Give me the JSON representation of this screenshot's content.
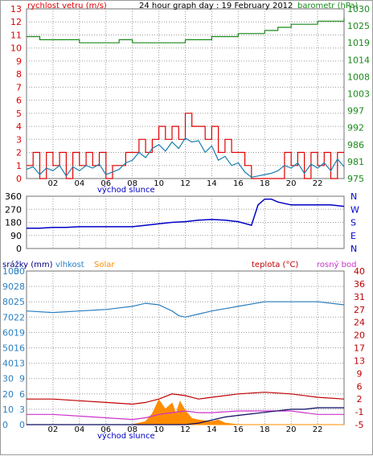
{
  "colors": {
    "wind": "#e00000",
    "gust_avg": "#1a7fb0",
    "pressure": "#1a8a1a",
    "direction": "#0000c8",
    "humidity": "#2a7fc0",
    "solar": "#ff8c00",
    "temperature": "#c00000",
    "dewpoint": "#cc33cc",
    "rain": "#0a0a60",
    "grid": "#9a9a9a"
  },
  "header": {
    "wind_label": "rychlost vetru (m/s)",
    "title": "24 hour graph day : 19 February 2012",
    "pressure_label": "barometr (hPa)"
  },
  "panel3": {
    "rain_label": "srážky (mm)",
    "humidity_label": "vlhkost",
    "solar_label": "Solar",
    "temp_label": "teplota (°C)",
    "dew_label": "rosný bod"
  },
  "x_ticks": [
    "02",
    "04",
    "06",
    "08",
    "10",
    "12",
    "14",
    "16",
    "18",
    "20",
    "22"
  ],
  "sunrise_label": "východ slunce",
  "chart_data": [
    {
      "type": "line",
      "name": "wind-pressure",
      "x_unit": "hour",
      "xlim": [
        0,
        24
      ],
      "ylim_left": [
        0,
        13
      ],
      "ylim_right": [
        975,
        1030
      ],
      "y_ticks_left": [
        "0",
        "1",
        "2",
        "3",
        "4",
        "5",
        "6",
        "7",
        "8",
        "9",
        "10",
        "11",
        "12",
        "13"
      ],
      "y_ticks_right": [
        "975",
        "981",
        "986",
        "992",
        "997",
        "1003",
        "1008",
        "1014",
        "1019",
        "1025",
        "1030"
      ],
      "series": [
        {
          "name": "rychlost vetru",
          "axis": "left",
          "x": [
            0,
            0.5,
            1,
            1.5,
            2,
            2.5,
            3,
            3.5,
            4,
            4.5,
            5,
            5.5,
            6,
            6.5,
            7,
            7.5,
            8,
            8.5,
            9,
            9.5,
            10,
            10.5,
            11,
            11.5,
            12,
            12.5,
            13,
            13.5,
            14,
            14.5,
            15,
            15.5,
            16,
            16.5,
            17,
            17.5,
            18,
            18.5,
            19,
            19.5,
            20,
            20.5,
            21,
            21.5,
            22,
            22.5,
            23,
            23.5,
            24
          ],
          "values": [
            1,
            2,
            0,
            2,
            1,
            2,
            0,
            2,
            1,
            2,
            1,
            2,
            0,
            1,
            1,
            2,
            2,
            3,
            2,
            3,
            4,
            3,
            4,
            3,
            5,
            4,
            4,
            3,
            4,
            2,
            3,
            2,
            2,
            1,
            0,
            0,
            0,
            0,
            0,
            2,
            1,
            2,
            0,
            2,
            1,
            2,
            0,
            2,
            2
          ]
        },
        {
          "name": "prumer",
          "axis": "left",
          "x": [
            0,
            0.5,
            1,
            1.5,
            2,
            2.5,
            3,
            3.5,
            4,
            4.5,
            5,
            5.5,
            6,
            6.5,
            7,
            7.5,
            8,
            8.5,
            9,
            9.5,
            10,
            10.5,
            11,
            11.5,
            12,
            12.5,
            13,
            13.5,
            14,
            14.5,
            15,
            15.5,
            16,
            16.5,
            17,
            17.5,
            18,
            18.5,
            19,
            19.5,
            20,
            20.5,
            21,
            21.5,
            22,
            22.5,
            23,
            23.5,
            24
          ],
          "values": [
            0.7,
            0.9,
            0.3,
            0.8,
            0.6,
            1.0,
            0.2,
            0.9,
            0.6,
            1.0,
            0.8,
            1.1,
            0.3,
            0.5,
            0.7,
            1.2,
            1.4,
            2.0,
            1.6,
            2.3,
            2.6,
            2.1,
            2.8,
            2.3,
            3.1,
            2.8,
            2.9,
            2.0,
            2.5,
            1.4,
            1.7,
            1.0,
            1.2,
            0.5,
            0.1,
            0.2,
            0.3,
            0.4,
            0.6,
            1.0,
            0.8,
            1.2,
            0.4,
            1.1,
            0.8,
            1.2,
            0.6,
            1.5,
            0.9
          ]
        },
        {
          "name": "barometr",
          "axis": "right",
          "x": [
            0,
            1,
            2,
            3,
            4,
            5,
            6,
            7,
            8,
            9,
            10,
            11,
            12,
            13,
            14,
            15,
            16,
            17,
            18,
            19,
            20,
            21,
            22,
            23,
            24
          ],
          "values": [
            1021,
            1020,
            1020,
            1020,
            1019,
            1019,
            1019,
            1020,
            1019,
            1019,
            1019,
            1019,
            1020,
            1020,
            1021,
            1021,
            1022,
            1022,
            1023,
            1024,
            1025,
            1025,
            1026,
            1026,
            1027
          ]
        }
      ]
    },
    {
      "type": "line",
      "name": "wind-direction",
      "x_unit": "hour",
      "xlim": [
        0,
        24
      ],
      "ylim_left": [
        0,
        360
      ],
      "y_ticks_left": [
        "360",
        "270",
        "180",
        "90",
        "0"
      ],
      "y_ticks_right": [
        "N",
        "W",
        "S",
        "E",
        "N"
      ],
      "series": [
        {
          "name": "smer vetru",
          "x": [
            0,
            1,
            2,
            3,
            4,
            5,
            6,
            7,
            8,
            9,
            10,
            11,
            12,
            13,
            14,
            15,
            16,
            17,
            17.5,
            18,
            18.5,
            19,
            20,
            21,
            22,
            23,
            24
          ],
          "values": [
            140,
            140,
            145,
            145,
            150,
            150,
            150,
            150,
            150,
            160,
            170,
            180,
            185,
            195,
            200,
            195,
            185,
            160,
            300,
            340,
            340,
            320,
            300,
            300,
            300,
            300,
            290
          ]
        }
      ]
    },
    {
      "type": "line",
      "name": "humidity-temperature",
      "x_unit": "hour",
      "xlim": [
        0,
        24
      ],
      "ylim_left": [
        0,
        100
      ],
      "ylim_right": [
        -5,
        40
      ],
      "y_ticks_left": [
        "0",
        "10",
        "20",
        "30",
        "40",
        "50",
        "60",
        "70",
        "80",
        "90",
        "100"
      ],
      "y_ticks_mid": [
        "0",
        "3",
        "6",
        "9",
        "13",
        "16",
        "19",
        "22",
        "25",
        "28",
        "30"
      ],
      "y_ticks_right": [
        "-5",
        "-1",
        "2",
        "6",
        "9",
        "13",
        "17",
        "20",
        "24",
        "27",
        "31",
        "36",
        "40"
      ],
      "series": [
        {
          "name": "vlhkost",
          "axis": "left",
          "x": [
            0,
            2,
            4,
            6,
            8,
            9,
            10,
            11,
            11.5,
            12,
            13,
            14,
            16,
            18,
            20,
            22,
            24
          ],
          "values": [
            74,
            73,
            74,
            75,
            77,
            79,
            78,
            74,
            71,
            70,
            72,
            74,
            77,
            80,
            80,
            80,
            78
          ]
        },
        {
          "name": "Solar",
          "axis": "left",
          "x": [
            0,
            8,
            9,
            9.5,
            10,
            10.5,
            11,
            11.3,
            11.6,
            12,
            12.5,
            13,
            14,
            14.5,
            15,
            16,
            24
          ],
          "values": [
            0,
            0,
            2,
            7,
            16,
            10,
            14,
            7,
            15,
            9,
            4,
            3,
            2,
            3,
            1,
            0,
            0
          ]
        },
        {
          "name": "teplota",
          "axis": "right",
          "x": [
            0,
            2,
            4,
            6,
            8,
            9,
            10,
            11,
            12,
            13,
            14,
            16,
            18,
            20,
            22,
            24
          ],
          "values": [
            2.5,
            2.5,
            2.0,
            1.5,
            1.0,
            1.5,
            2.5,
            4.0,
            3.5,
            2.5,
            3.0,
            4.0,
            4.5,
            4.0,
            3.0,
            2.5
          ]
        },
        {
          "name": "rosný bod",
          "axis": "right",
          "x": [
            0,
            2,
            4,
            6,
            8,
            9,
            10,
            11,
            12,
            13,
            14,
            16,
            18,
            20,
            22,
            24
          ],
          "values": [
            -2,
            -2,
            -2.5,
            -3,
            -3.5,
            -3,
            -2,
            -1.5,
            -1,
            -1.5,
            -1.5,
            -1,
            -1,
            -1,
            -2,
            -2
          ]
        },
        {
          "name": "srážky",
          "axis": "left",
          "x": [
            0,
            12,
            13,
            14,
            15,
            16,
            17,
            18,
            19,
            20,
            21,
            22,
            23,
            24
          ],
          "values": [
            0,
            0,
            1,
            3,
            5,
            6,
            7,
            8,
            9,
            10,
            10,
            11,
            11,
            11
          ]
        }
      ]
    }
  ]
}
